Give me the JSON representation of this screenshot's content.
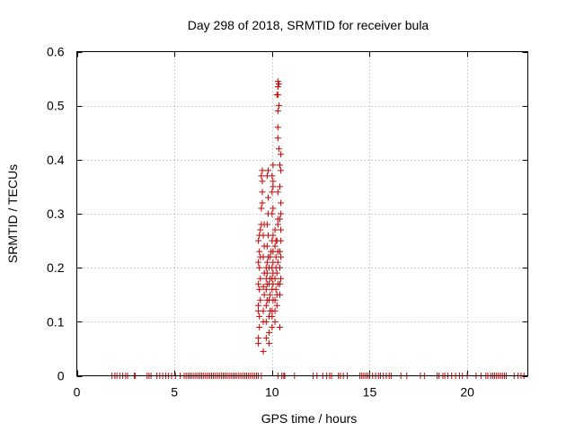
{
  "chart_data": {
    "type": "scatter",
    "title": "Day 298 of 2018, SRMTID for receiver bula",
    "xlabel": "GPS time / hours",
    "ylabel": "SRMTID / TECUs",
    "xlim": [
      0,
      23.1
    ],
    "ylim": [
      0,
      0.6
    ],
    "x_ticks": [
      0,
      5,
      10,
      15,
      20
    ],
    "y_ticks": [
      0,
      0.1,
      0.2,
      0.3,
      0.4,
      0.5,
      0.6
    ],
    "x_tick_labels": [
      "0",
      "5",
      "10",
      "15",
      "20"
    ],
    "y_tick_labels": [
      "0",
      "0.1",
      "0.2",
      "0.3",
      "0.4",
      "0.5",
      "0.6"
    ],
    "grid": true,
    "marker": "+",
    "color": "#cc0000",
    "series": [
      {
        "name": "SRMTID",
        "points": [
          [
            1.8,
            0
          ],
          [
            1.95,
            0
          ],
          [
            2.05,
            0
          ],
          [
            2.2,
            0
          ],
          [
            2.35,
            0
          ],
          [
            2.5,
            0
          ],
          [
            2.6,
            0
          ],
          [
            2.95,
            0
          ],
          [
            3.0,
            0
          ],
          [
            3.6,
            0
          ],
          [
            3.7,
            0
          ],
          [
            3.8,
            0
          ],
          [
            4.1,
            0
          ],
          [
            4.25,
            0
          ],
          [
            4.4,
            0
          ],
          [
            4.55,
            0
          ],
          [
            4.7,
            0
          ],
          [
            4.85,
            0
          ],
          [
            5.05,
            0
          ],
          [
            5.3,
            0
          ],
          [
            5.5,
            0
          ],
          [
            5.6,
            0
          ],
          [
            5.7,
            0
          ],
          [
            5.8,
            0
          ],
          [
            5.9,
            0
          ],
          [
            6.0,
            0
          ],
          [
            6.1,
            0
          ],
          [
            6.2,
            0
          ],
          [
            6.3,
            0
          ],
          [
            6.4,
            0
          ],
          [
            6.5,
            0
          ],
          [
            6.6,
            0
          ],
          [
            6.7,
            0
          ],
          [
            6.8,
            0
          ],
          [
            6.9,
            0
          ],
          [
            7.0,
            0
          ],
          [
            7.1,
            0
          ],
          [
            7.2,
            0
          ],
          [
            7.3,
            0
          ],
          [
            7.4,
            0
          ],
          [
            7.5,
            0
          ],
          [
            7.6,
            0
          ],
          [
            7.7,
            0
          ],
          [
            7.8,
            0
          ],
          [
            7.9,
            0
          ],
          [
            8.0,
            0
          ],
          [
            8.1,
            0
          ],
          [
            8.2,
            0
          ],
          [
            8.3,
            0
          ],
          [
            8.4,
            0
          ],
          [
            8.5,
            0
          ],
          [
            8.6,
            0
          ],
          [
            8.7,
            0
          ],
          [
            8.8,
            0
          ],
          [
            8.9,
            0
          ],
          [
            9.0,
            0
          ],
          [
            9.1,
            0
          ],
          [
            9.2,
            0
          ],
          [
            9.3,
            0
          ],
          [
            9.45,
            0
          ],
          [
            10.3,
            0
          ],
          [
            10.5,
            0
          ],
          [
            10.6,
            0
          ],
          [
            10.65,
            0
          ],
          [
            11.15,
            0
          ],
          [
            12.1,
            0
          ],
          [
            12.3,
            0
          ],
          [
            12.6,
            0
          ],
          [
            12.8,
            0
          ],
          [
            12.95,
            0
          ],
          [
            13.05,
            0
          ],
          [
            13.4,
            0
          ],
          [
            13.5,
            0
          ],
          [
            13.65,
            0
          ],
          [
            13.85,
            0
          ],
          [
            14.5,
            0
          ],
          [
            14.6,
            0
          ],
          [
            14.7,
            0
          ],
          [
            14.8,
            0
          ],
          [
            14.9,
            0
          ],
          [
            15.0,
            0
          ],
          [
            15.15,
            0
          ],
          [
            15.3,
            0
          ],
          [
            15.45,
            0
          ],
          [
            15.55,
            0
          ],
          [
            15.7,
            0
          ],
          [
            15.85,
            0
          ],
          [
            16.0,
            0
          ],
          [
            16.1,
            0
          ],
          [
            16.6,
            0
          ],
          [
            16.9,
            0
          ],
          [
            17.6,
            0
          ],
          [
            17.8,
            0
          ],
          [
            18.45,
            0
          ],
          [
            18.55,
            0
          ],
          [
            18.75,
            0
          ],
          [
            18.85,
            0
          ],
          [
            19.0,
            0
          ],
          [
            19.2,
            0
          ],
          [
            19.4,
            0
          ],
          [
            19.6,
            0
          ],
          [
            19.75,
            0
          ],
          [
            20.0,
            0
          ],
          [
            20.45,
            0
          ],
          [
            20.7,
            0
          ],
          [
            20.95,
            0
          ],
          [
            21.05,
            0
          ],
          [
            21.2,
            0
          ],
          [
            21.3,
            0
          ],
          [
            21.4,
            0
          ],
          [
            21.5,
            0
          ],
          [
            21.6,
            0
          ],
          [
            21.7,
            0
          ],
          [
            21.8,
            0
          ],
          [
            21.9,
            0
          ],
          [
            22.0,
            0
          ],
          [
            22.4,
            0
          ],
          [
            22.6,
            0
          ],
          [
            22.75,
            0
          ],
          [
            22.9,
            0
          ],
          [
            9.3,
            0.06
          ],
          [
            9.3,
            0.07
          ],
          [
            9.35,
            0.09
          ],
          [
            9.35,
            0.11
          ],
          [
            9.3,
            0.12
          ],
          [
            9.3,
            0.13
          ],
          [
            9.4,
            0.14
          ],
          [
            9.35,
            0.16
          ],
          [
            9.3,
            0.17
          ],
          [
            9.4,
            0.18
          ],
          [
            9.35,
            0.2
          ],
          [
            9.3,
            0.21
          ],
          [
            9.4,
            0.22
          ],
          [
            9.35,
            0.23
          ],
          [
            9.3,
            0.25
          ],
          [
            9.35,
            0.26
          ],
          [
            9.4,
            0.27
          ],
          [
            9.45,
            0.28
          ],
          [
            9.45,
            0.31
          ],
          [
            9.5,
            0.32
          ],
          [
            9.5,
            0.34
          ],
          [
            9.5,
            0.36
          ],
          [
            9.45,
            0.37
          ],
          [
            9.5,
            0.38
          ],
          [
            9.55,
            0.045
          ],
          [
            9.55,
            0.1
          ],
          [
            9.55,
            0.12
          ],
          [
            9.6,
            0.15
          ],
          [
            9.55,
            0.165
          ],
          [
            9.6,
            0.19
          ],
          [
            9.55,
            0.22
          ],
          [
            9.6,
            0.24
          ],
          [
            9.55,
            0.26
          ],
          [
            9.6,
            0.28
          ],
          [
            9.7,
            0.07
          ],
          [
            9.7,
            0.1
          ],
          [
            9.7,
            0.13
          ],
          [
            9.75,
            0.14
          ],
          [
            9.7,
            0.16
          ],
          [
            9.75,
            0.17
          ],
          [
            9.7,
            0.18
          ],
          [
            9.75,
            0.19
          ],
          [
            9.7,
            0.2
          ],
          [
            9.75,
            0.21
          ],
          [
            9.8,
            0.22
          ],
          [
            9.75,
            0.24
          ],
          [
            9.8,
            0.26
          ],
          [
            9.75,
            0.28
          ],
          [
            9.8,
            0.3
          ],
          [
            9.8,
            0.33
          ],
          [
            9.75,
            0.37
          ],
          [
            9.8,
            0.38
          ],
          [
            9.85,
            0.06
          ],
          [
            9.85,
            0.08
          ],
          [
            9.85,
            0.11
          ],
          [
            9.9,
            0.12
          ],
          [
            9.85,
            0.14
          ],
          [
            9.9,
            0.15
          ],
          [
            9.85,
            0.17
          ],
          [
            9.9,
            0.18
          ],
          [
            9.85,
            0.2
          ],
          [
            9.9,
            0.22
          ],
          [
            9.95,
            0.23
          ],
          [
            10.0,
            0.09
          ],
          [
            10.0,
            0.11
          ],
          [
            10.0,
            0.12
          ],
          [
            10.05,
            0.14
          ],
          [
            10.0,
            0.16
          ],
          [
            10.05,
            0.17
          ],
          [
            10.0,
            0.18
          ],
          [
            10.05,
            0.19
          ],
          [
            10.0,
            0.2
          ],
          [
            10.05,
            0.21
          ],
          [
            10.05,
            0.23
          ],
          [
            10.0,
            0.25
          ],
          [
            10.05,
            0.26
          ],
          [
            10.0,
            0.3
          ],
          [
            10.05,
            0.31
          ],
          [
            10.0,
            0.34
          ],
          [
            10.05,
            0.35
          ],
          [
            10.0,
            0.37
          ],
          [
            10.05,
            0.39
          ],
          [
            10.05,
            0.36
          ],
          [
            10.15,
            0.1
          ],
          [
            10.15,
            0.12
          ],
          [
            10.15,
            0.14
          ],
          [
            10.2,
            0.16
          ],
          [
            10.15,
            0.18
          ],
          [
            10.2,
            0.2
          ],
          [
            10.2,
            0.22
          ],
          [
            10.15,
            0.24
          ],
          [
            10.2,
            0.25
          ],
          [
            10.15,
            0.27
          ],
          [
            10.25,
            0.13
          ],
          [
            10.25,
            0.15
          ],
          [
            10.3,
            0.17
          ],
          [
            10.25,
            0.19
          ],
          [
            10.3,
            0.21
          ],
          [
            10.3,
            0.23
          ],
          [
            10.25,
            0.25
          ],
          [
            10.3,
            0.28
          ],
          [
            10.3,
            0.29
          ],
          [
            10.3,
            0.34
          ],
          [
            10.35,
            0.42
          ],
          [
            10.3,
            0.44
          ],
          [
            10.3,
            0.46
          ],
          [
            10.3,
            0.49
          ],
          [
            10.35,
            0.5
          ],
          [
            10.3,
            0.52
          ],
          [
            10.25,
            0.52
          ],
          [
            10.35,
            0.54
          ],
          [
            10.3,
            0.545
          ],
          [
            10.3,
            0.535
          ],
          [
            10.4,
            0.09
          ],
          [
            10.4,
            0.15
          ],
          [
            10.4,
            0.17
          ],
          [
            10.45,
            0.18
          ],
          [
            10.4,
            0.2
          ],
          [
            10.45,
            0.22
          ],
          [
            10.4,
            0.23
          ],
          [
            10.45,
            0.25
          ],
          [
            10.45,
            0.27
          ],
          [
            10.4,
            0.29
          ],
          [
            10.45,
            0.3
          ],
          [
            10.45,
            0.32
          ],
          [
            10.4,
            0.35
          ],
          [
            10.45,
            0.38
          ],
          [
            10.4,
            0.39
          ],
          [
            10.45,
            0.41
          ]
        ]
      }
    ]
  }
}
